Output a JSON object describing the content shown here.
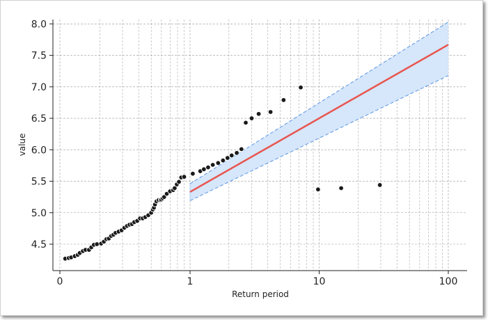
{
  "chart_data": {
    "type": "scatter",
    "title": "",
    "xlabel": "Return period",
    "ylabel": "value",
    "x_scale": "log (return period)",
    "x_ticks": [
      {
        "value": 0,
        "label": "0"
      },
      {
        "value": 1,
        "label": "1"
      },
      {
        "value": 10,
        "label": "10"
      },
      {
        "value": 100,
        "label": "100"
      }
    ],
    "y_ticks": [
      {
        "value": 4.5,
        "label": "4.5"
      },
      {
        "value": 5.0,
        "label": "5.0"
      },
      {
        "value": 5.5,
        "label": "5.5"
      },
      {
        "value": 6.0,
        "label": "6.0"
      },
      {
        "value": 6.5,
        "label": "6.5"
      },
      {
        "value": 7.0,
        "label": "7.0"
      },
      {
        "value": 7.5,
        "label": "7.5"
      },
      {
        "value": 8.0,
        "label": "8.0"
      }
    ],
    "ylim": [
      4.08,
      8.07
    ],
    "grid": true,
    "colors": {
      "points": "#1a1a1a",
      "fit_line": "#e8554e",
      "band_fill": "#d6e6fb",
      "band_edge": "#5a96e0",
      "grid": "#9a9a9a"
    },
    "series": [
      {
        "kind": "points",
        "x": [
          0.108,
          0.115,
          0.12,
          0.128,
          0.135,
          0.14,
          0.148,
          0.155,
          0.165,
          0.172,
          0.18,
          0.19,
          0.205,
          0.215,
          0.225,
          0.235,
          0.245,
          0.255,
          0.265,
          0.28,
          0.295,
          0.31,
          0.325,
          0.34,
          0.355,
          0.37,
          0.39,
          0.41,
          0.43,
          0.45,
          0.475,
          0.5,
          0.515,
          0.525,
          0.535,
          0.55,
          0.57,
          0.59,
          0.6,
          0.615,
          0.63,
          0.66,
          0.7,
          0.74,
          0.76,
          0.79,
          0.82,
          0.855,
          0.9,
          1.05,
          1.2,
          1.28,
          1.38,
          1.5,
          1.65,
          1.8,
          1.95,
          2.1,
          2.3,
          2.5,
          2.7,
          3.0,
          3.4,
          4.2,
          5.3,
          7.2,
          9.8,
          14.8,
          29.5
        ],
        "y": [
          4.27,
          4.28,
          4.29,
          4.31,
          4.33,
          4.36,
          4.39,
          4.41,
          4.41,
          4.45,
          4.49,
          4.5,
          4.51,
          4.54,
          4.58,
          4.59,
          4.63,
          4.65,
          4.68,
          4.7,
          4.72,
          4.76,
          4.79,
          4.81,
          4.82,
          4.85,
          4.87,
          4.91,
          4.91,
          4.93,
          4.96,
          5.0,
          5.05,
          5.08,
          5.13,
          5.18,
          5.2,
          5.2,
          5.21,
          5.23,
          5.25,
          5.3,
          5.34,
          5.36,
          5.39,
          5.45,
          5.49,
          5.56,
          5.57,
          5.62,
          5.66,
          5.69,
          5.72,
          5.76,
          5.79,
          5.83,
          5.87,
          5.91,
          5.95,
          6.01,
          6.43,
          6.5,
          6.57,
          6.6,
          6.79,
          6.99,
          5.37,
          5.39,
          5.44
        ]
      },
      {
        "kind": "fit",
        "x": [
          1,
          100
        ],
        "y": [
          5.33,
          7.67
        ]
      },
      {
        "kind": "confidence_band",
        "x": [
          1,
          100
        ],
        "upper": [
          5.46,
          8.03
        ],
        "lower": [
          5.19,
          7.18
        ]
      }
    ]
  }
}
